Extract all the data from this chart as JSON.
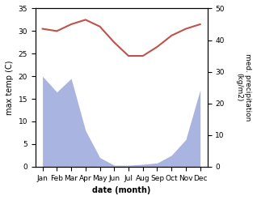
{
  "months": [
    "Jan",
    "Feb",
    "Mar",
    "Apr",
    "May",
    "Jun",
    "Jul",
    "Aug",
    "Sep",
    "Oct",
    "Nov",
    "Dec"
  ],
  "temperature": [
    30.5,
    30.0,
    31.5,
    32.5,
    31.0,
    27.5,
    24.5,
    24.5,
    26.5,
    29.0,
    30.5,
    31.5
  ],
  "precipitation": [
    200,
    165,
    195,
    80,
    20,
    3,
    3,
    5,
    8,
    25,
    60,
    170
  ],
  "temp_color": "#c0524a",
  "precip_color": "#aab4e0",
  "temp_ylim": [
    0,
    35
  ],
  "precip_ylim_internal": [
    0,
    350
  ],
  "xlabel": "date (month)",
  "ylabel_left": "max temp (C)",
  "ylabel_right": "med. precipitation\n(kg/m2)",
  "background_color": "#ffffff",
  "right_yticks_internal": [
    0,
    70,
    140,
    210,
    280,
    350
  ],
  "right_yticklabels": [
    "0",
    "10",
    "20",
    "30",
    "40",
    "50"
  ],
  "left_yticks": [
    0,
    5,
    10,
    15,
    20,
    25,
    30,
    35
  ],
  "left_yticklabels": [
    "0",
    "5",
    "10",
    "15",
    "20",
    "25",
    "30",
    "35"
  ]
}
